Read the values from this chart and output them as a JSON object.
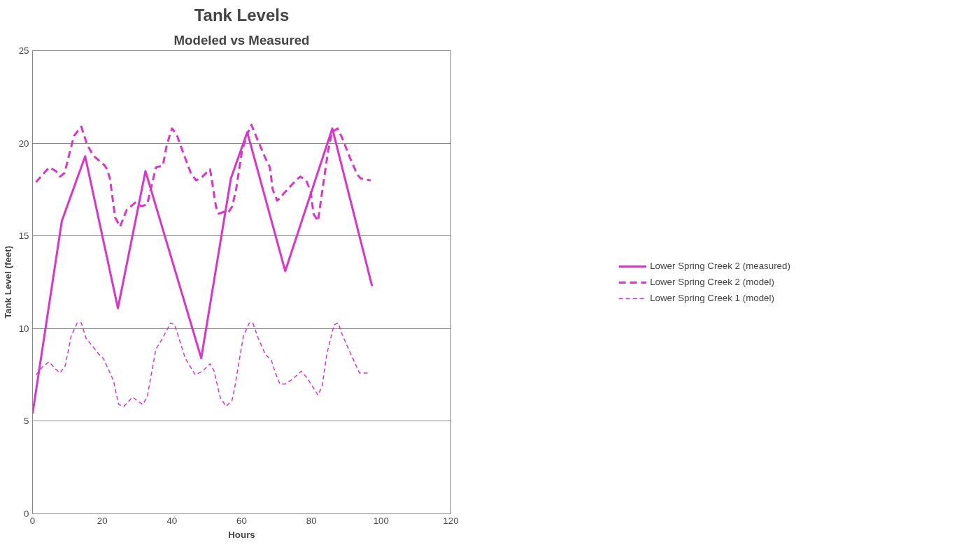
{
  "chart_data": {
    "type": "line",
    "title": "Tank Levels",
    "subtitle": "Modeled vs Measured",
    "xlabel": "Hours",
    "ylabel": "Tank Level (feet)",
    "xlim": [
      0,
      120
    ],
    "xticks": [
      0,
      20,
      40,
      60,
      80,
      100,
      120
    ],
    "ylim": [
      0,
      25
    ],
    "yticks": [
      0,
      5,
      10,
      15,
      20,
      25
    ],
    "grid": "y",
    "legend": "right",
    "marker": "none",
    "series": [
      {
        "name": "Lower Spring Creek 2 (measured)",
        "color": "#dd33cc",
        "line_style": "solid",
        "x": [
          0,
          8.4,
          15.1,
          24.5,
          32.4,
          48.4,
          56.9,
          61.6,
          72.5,
          86.0,
          97.4
        ],
        "values": [
          5.4,
          15.8,
          19.3,
          11.1,
          18.5,
          8.4,
          18.1,
          20.6,
          13.1,
          20.8,
          12.3
        ]
      },
      {
        "name": "Lower Spring Creek 2 (model)",
        "color": "#dd33cc",
        "line_style": "dashed",
        "x": [
          1.0,
          3.8,
          4.8,
          6.7,
          7.9,
          9.2,
          10.4,
          11.9,
          14.0,
          15.7,
          17.6,
          18.9,
          20.7,
          21.4,
          22.2,
          23.7,
          25.1,
          27.0,
          29.5,
          31.2,
          32.9,
          35.4,
          37.4,
          38.5,
          40.0,
          41.3,
          43.4,
          45.4,
          46.9,
          48.2,
          50.9,
          51.3,
          52.6,
          53.4,
          54.9,
          56.3,
          57.3,
          58.4,
          60.1,
          61.6,
          62.8,
          64.3,
          66.8,
          68.1,
          68.9,
          70.2,
          71.2,
          73.1,
          75.6,
          76.8,
          78.5,
          79.8,
          80.6,
          81.9,
          83.1,
          84.8,
          85.9,
          87.5,
          88.8,
          91.1,
          93.2,
          94.2,
          97.0
        ],
        "values": [
          17.9,
          18.5,
          18.7,
          18.5,
          18.2,
          18.4,
          19.3,
          20.4,
          20.9,
          19.9,
          19.3,
          19.1,
          18.8,
          18.6,
          18.1,
          16.0,
          15.5,
          16.4,
          16.8,
          16.6,
          16.7,
          18.7,
          18.8,
          19.9,
          20.8,
          20.5,
          19.4,
          18.4,
          18.0,
          18.1,
          18.6,
          18.2,
          16.6,
          16.2,
          16.3,
          16.3,
          16.6,
          17.5,
          19.6,
          20.5,
          21.0,
          20.3,
          19.2,
          18.7,
          17.5,
          16.9,
          17.1,
          17.5,
          18.0,
          18.2,
          18.0,
          17.4,
          16.2,
          15.8,
          17.4,
          19.6,
          20.6,
          20.8,
          20.3,
          19.2,
          18.3,
          18.1,
          18.0
        ]
      },
      {
        "name": "Lower Spring Creek 1 (model)",
        "color": "#dd33cc",
        "line_style": "dotted",
        "x": [
          1.0,
          3.2,
          4.8,
          6.7,
          7.9,
          9.4,
          11.1,
          12.8,
          14.0,
          15.3,
          17.4,
          19.1,
          20.3,
          22.0,
          23.2,
          24.7,
          26.2,
          28.7,
          31.6,
          32.9,
          35.4,
          37.1,
          39.6,
          40.8,
          43.8,
          46.7,
          48.8,
          50.9,
          52.1,
          53.8,
          55.5,
          57.2,
          58.0,
          60.5,
          62.2,
          63.2,
          64.7,
          66.8,
          68.5,
          69.7,
          71.0,
          72.5,
          74.8,
          77.1,
          78.9,
          81.9,
          83.1,
          84.4,
          86.5,
          87.7,
          88.8,
          91.1,
          93.8,
          96.1
        ],
        "values": [
          7.5,
          8.0,
          8.2,
          7.8,
          7.6,
          8.0,
          9.6,
          10.3,
          10.3,
          9.5,
          9.0,
          8.6,
          8.4,
          7.7,
          7.2,
          5.9,
          5.8,
          6.3,
          5.9,
          6.3,
          8.9,
          9.4,
          10.3,
          10.2,
          8.4,
          7.5,
          7.7,
          8.1,
          7.7,
          6.3,
          5.8,
          6.1,
          6.8,
          9.6,
          10.3,
          10.3,
          9.5,
          8.6,
          8.3,
          7.6,
          7.0,
          7.0,
          7.3,
          7.7,
          7.3,
          6.4,
          6.9,
          8.6,
          10.2,
          10.3,
          9.7,
          8.7,
          7.6,
          7.6
        ]
      }
    ]
  }
}
